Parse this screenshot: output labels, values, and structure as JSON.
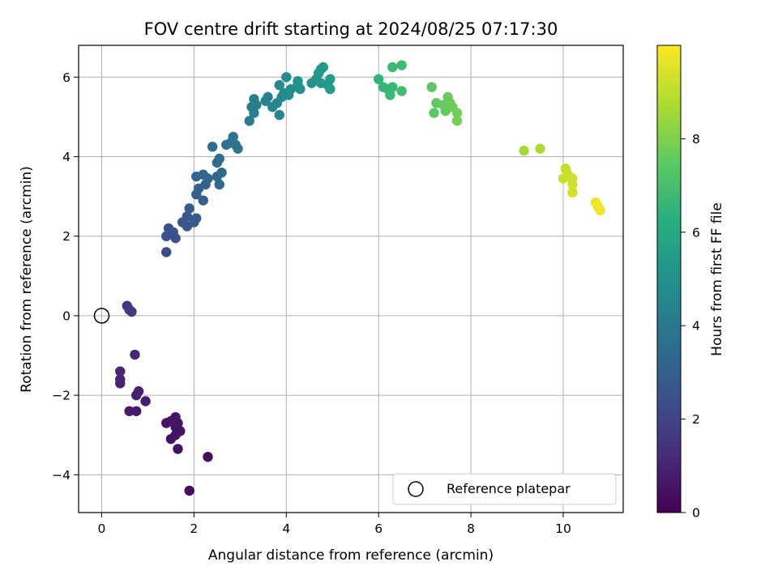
{
  "chart_data": {
    "type": "scatter",
    "title": "FOV centre drift starting at 2024/08/25 07:17:30",
    "xlabel": "Angular distance from reference (arcmin)",
    "ylabel": "Rotation from reference (arcmin)",
    "xlim": [
      -0.5,
      11.3
    ],
    "ylim": [
      -4.95,
      6.8
    ],
    "xticks": [
      0,
      2,
      4,
      6,
      8,
      10
    ],
    "yticks": [
      -4,
      -2,
      0,
      2,
      4,
      6
    ],
    "grid": true,
    "legend": {
      "position": "bottom-right",
      "entries": [
        "Reference platepar"
      ]
    },
    "reference_point": {
      "x": 0,
      "y": 0,
      "label": "Reference platepar"
    },
    "colorbar": {
      "label": "Hours from first FF file",
      "colormap": "viridis",
      "range": [
        0,
        10
      ],
      "ticks": [
        0,
        2,
        4,
        6,
        8
      ]
    },
    "points": [
      {
        "x": 1.9,
        "y": -4.4,
        "h": 0.3
      },
      {
        "x": 2.3,
        "y": -3.55,
        "h": 0.4
      },
      {
        "x": 1.65,
        "y": -3.35,
        "h": 0.5
      },
      {
        "x": 1.5,
        "y": -3.1,
        "h": 0.5
      },
      {
        "x": 1.6,
        "y": -3.0,
        "h": 0.5
      },
      {
        "x": 1.7,
        "y": -2.9,
        "h": 0.5
      },
      {
        "x": 1.6,
        "y": -2.8,
        "h": 0.5
      },
      {
        "x": 1.65,
        "y": -2.7,
        "h": 0.55
      },
      {
        "x": 1.4,
        "y": -2.7,
        "h": 0.55
      },
      {
        "x": 1.5,
        "y": -2.65,
        "h": 0.6
      },
      {
        "x": 1.6,
        "y": -2.55,
        "h": 0.6
      },
      {
        "x": 0.6,
        "y": -2.4,
        "h": 0.7
      },
      {
        "x": 0.75,
        "y": -2.4,
        "h": 0.7
      },
      {
        "x": 0.95,
        "y": -2.15,
        "h": 0.8
      },
      {
        "x": 0.75,
        "y": -2.0,
        "h": 0.85
      },
      {
        "x": 0.8,
        "y": -1.9,
        "h": 0.9
      },
      {
        "x": 0.4,
        "y": -1.7,
        "h": 0.95
      },
      {
        "x": 0.4,
        "y": -1.6,
        "h": 1.0
      },
      {
        "x": 0.4,
        "y": -1.4,
        "h": 1.05
      },
      {
        "x": 0.72,
        "y": -0.98,
        "h": 1.1
      },
      {
        "x": 0.55,
        "y": 0.25,
        "h": 1.6
      },
      {
        "x": 0.6,
        "y": 0.15,
        "h": 1.65
      },
      {
        "x": 0.65,
        "y": 0.1,
        "h": 1.7
      },
      {
        "x": 1.4,
        "y": 1.6,
        "h": 2.3
      },
      {
        "x": 1.4,
        "y": 2.0,
        "h": 2.4
      },
      {
        "x": 1.6,
        "y": 1.95,
        "h": 2.45
      },
      {
        "x": 1.45,
        "y": 2.2,
        "h": 2.5
      },
      {
        "x": 1.55,
        "y": 2.1,
        "h": 2.55
      },
      {
        "x": 1.85,
        "y": 2.25,
        "h": 2.65
      },
      {
        "x": 1.75,
        "y": 2.35,
        "h": 2.7
      },
      {
        "x": 1.85,
        "y": 2.5,
        "h": 2.75
      },
      {
        "x": 2.0,
        "y": 2.35,
        "h": 2.8
      },
      {
        "x": 2.05,
        "y": 2.45,
        "h": 2.85
      },
      {
        "x": 1.9,
        "y": 2.7,
        "h": 2.9
      },
      {
        "x": 2.2,
        "y": 2.9,
        "h": 3.0
      },
      {
        "x": 2.05,
        "y": 3.05,
        "h": 3.05
      },
      {
        "x": 2.1,
        "y": 3.2,
        "h": 3.1
      },
      {
        "x": 2.25,
        "y": 3.3,
        "h": 3.15
      },
      {
        "x": 2.05,
        "y": 3.5,
        "h": 3.2
      },
      {
        "x": 2.2,
        "y": 3.55,
        "h": 3.25
      },
      {
        "x": 2.3,
        "y": 3.45,
        "h": 3.3
      },
      {
        "x": 2.55,
        "y": 3.3,
        "h": 3.35
      },
      {
        "x": 2.5,
        "y": 3.5,
        "h": 3.4
      },
      {
        "x": 2.6,
        "y": 3.6,
        "h": 3.45
      },
      {
        "x": 2.5,
        "y": 3.85,
        "h": 3.5
      },
      {
        "x": 2.55,
        "y": 3.95,
        "h": 3.55
      },
      {
        "x": 2.4,
        "y": 4.25,
        "h": 3.6
      },
      {
        "x": 2.7,
        "y": 4.3,
        "h": 3.7
      },
      {
        "x": 2.8,
        "y": 4.35,
        "h": 3.75
      },
      {
        "x": 2.9,
        "y": 4.3,
        "h": 3.8
      },
      {
        "x": 2.95,
        "y": 4.2,
        "h": 3.85
      },
      {
        "x": 2.85,
        "y": 4.5,
        "h": 3.9
      },
      {
        "x": 3.2,
        "y": 4.9,
        "h": 4.1
      },
      {
        "x": 3.25,
        "y": 5.25,
        "h": 4.2
      },
      {
        "x": 3.3,
        "y": 5.1,
        "h": 4.25
      },
      {
        "x": 3.35,
        "y": 5.3,
        "h": 4.3
      },
      {
        "x": 3.3,
        "y": 5.45,
        "h": 4.35
      },
      {
        "x": 3.55,
        "y": 5.4,
        "h": 4.4
      },
      {
        "x": 3.6,
        "y": 5.5,
        "h": 4.45
      },
      {
        "x": 3.7,
        "y": 5.25,
        "h": 4.5
      },
      {
        "x": 3.8,
        "y": 5.35,
        "h": 4.55
      },
      {
        "x": 3.85,
        "y": 5.05,
        "h": 4.6
      },
      {
        "x": 3.9,
        "y": 5.5,
        "h": 4.65
      },
      {
        "x": 3.95,
        "y": 5.6,
        "h": 4.7
      },
      {
        "x": 3.85,
        "y": 5.8,
        "h": 4.75
      },
      {
        "x": 4.05,
        "y": 5.55,
        "h": 4.8
      },
      {
        "x": 4.0,
        "y": 6.0,
        "h": 4.85
      },
      {
        "x": 4.1,
        "y": 5.7,
        "h": 4.9
      },
      {
        "x": 4.25,
        "y": 5.8,
        "h": 4.95
      },
      {
        "x": 4.3,
        "y": 5.7,
        "h": 5.0
      },
      {
        "x": 4.25,
        "y": 5.9,
        "h": 5.05
      },
      {
        "x": 4.55,
        "y": 5.85,
        "h": 5.1
      },
      {
        "x": 4.65,
        "y": 5.95,
        "h": 5.15
      },
      {
        "x": 4.7,
        "y": 6.1,
        "h": 5.2
      },
      {
        "x": 4.75,
        "y": 6.2,
        "h": 5.25
      },
      {
        "x": 4.8,
        "y": 6.25,
        "h": 5.3
      },
      {
        "x": 4.75,
        "y": 5.85,
        "h": 5.35
      },
      {
        "x": 4.9,
        "y": 5.8,
        "h": 5.4
      },
      {
        "x": 4.95,
        "y": 5.95,
        "h": 5.45
      },
      {
        "x": 4.95,
        "y": 5.7,
        "h": 5.5
      },
      {
        "x": 6.0,
        "y": 5.95,
        "h": 6.5
      },
      {
        "x": 6.1,
        "y": 5.75,
        "h": 6.55
      },
      {
        "x": 6.2,
        "y": 5.7,
        "h": 6.6
      },
      {
        "x": 6.3,
        "y": 5.75,
        "h": 6.65
      },
      {
        "x": 6.25,
        "y": 5.55,
        "h": 6.7
      },
      {
        "x": 6.3,
        "y": 6.25,
        "h": 6.75
      },
      {
        "x": 6.5,
        "y": 6.3,
        "h": 6.8
      },
      {
        "x": 6.5,
        "y": 5.65,
        "h": 6.85
      },
      {
        "x": 7.15,
        "y": 5.75,
        "h": 7.4
      },
      {
        "x": 7.2,
        "y": 5.1,
        "h": 7.45
      },
      {
        "x": 7.25,
        "y": 5.35,
        "h": 7.5
      },
      {
        "x": 7.4,
        "y": 5.3,
        "h": 7.55
      },
      {
        "x": 7.45,
        "y": 5.15,
        "h": 7.6
      },
      {
        "x": 7.5,
        "y": 5.5,
        "h": 7.65
      },
      {
        "x": 7.55,
        "y": 5.35,
        "h": 7.7
      },
      {
        "x": 7.6,
        "y": 5.25,
        "h": 7.75
      },
      {
        "x": 7.7,
        "y": 5.1,
        "h": 7.8
      },
      {
        "x": 7.7,
        "y": 4.9,
        "h": 7.85
      },
      {
        "x": 9.15,
        "y": 4.15,
        "h": 8.6
      },
      {
        "x": 9.5,
        "y": 4.2,
        "h": 8.7
      },
      {
        "x": 10.05,
        "y": 3.7,
        "h": 9.1
      },
      {
        "x": 10.0,
        "y": 3.45,
        "h": 9.15
      },
      {
        "x": 10.1,
        "y": 3.55,
        "h": 9.2
      },
      {
        "x": 10.2,
        "y": 3.45,
        "h": 9.25
      },
      {
        "x": 10.2,
        "y": 3.3,
        "h": 9.3
      },
      {
        "x": 10.2,
        "y": 3.1,
        "h": 9.35
      },
      {
        "x": 10.7,
        "y": 2.85,
        "h": 9.7
      },
      {
        "x": 10.75,
        "y": 2.75,
        "h": 9.75
      },
      {
        "x": 10.8,
        "y": 2.65,
        "h": 9.8
      }
    ]
  }
}
